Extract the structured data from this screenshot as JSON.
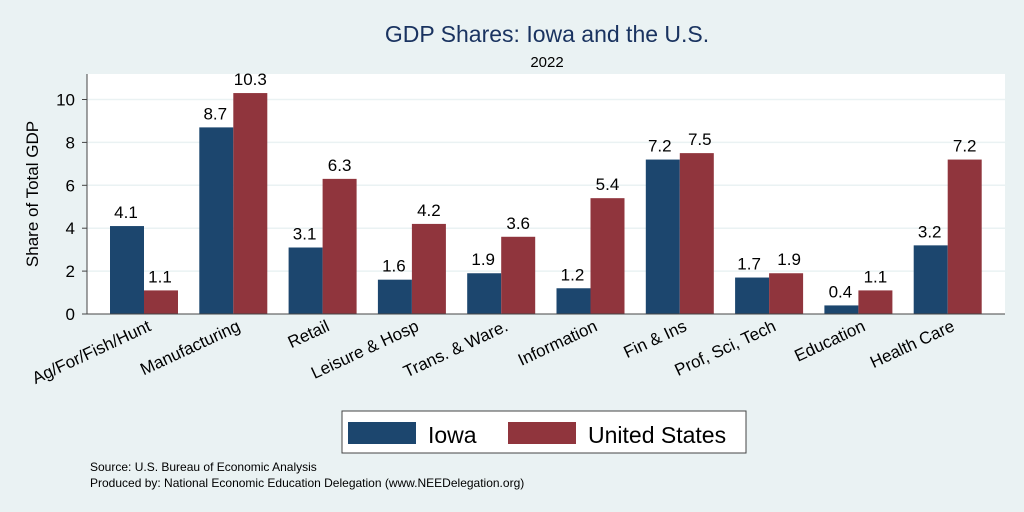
{
  "chart_data": {
    "type": "bar",
    "title": "GDP Shares: Iowa and the U.S.",
    "subtitle": "2022",
    "xlabel": "",
    "ylabel": "Share of Total GDP",
    "ylim": [
      0,
      11
    ],
    "yticks": [
      0,
      2,
      4,
      6,
      8,
      10
    ],
    "grid": true,
    "legend_position": "bottom-center",
    "categories": [
      "Ag/For/Fish/Hunt",
      "Manufacturing",
      "Retail",
      "Leisure & Hosp",
      "Trans. & Ware.",
      "Information",
      "Fin & Ins",
      "Prof, Sci, Tech",
      "Education",
      "Health Care"
    ],
    "series": [
      {
        "name": "Iowa",
        "color": "#1c466e",
        "values": [
          4.1,
          8.7,
          3.1,
          1.6,
          1.9,
          1.2,
          7.2,
          1.7,
          0.4,
          3.2
        ]
      },
      {
        "name": "United States",
        "color": "#90353d",
        "values": [
          1.1,
          10.3,
          6.3,
          4.2,
          3.6,
          5.4,
          7.5,
          1.9,
          1.1,
          7.2
        ]
      }
    ]
  },
  "footer": {
    "source": "Source: U.S. Bureau of Economic Analysis",
    "produced_by": "Produced by: National Economic Education Delegation (www.NEEDelegation.org)"
  }
}
